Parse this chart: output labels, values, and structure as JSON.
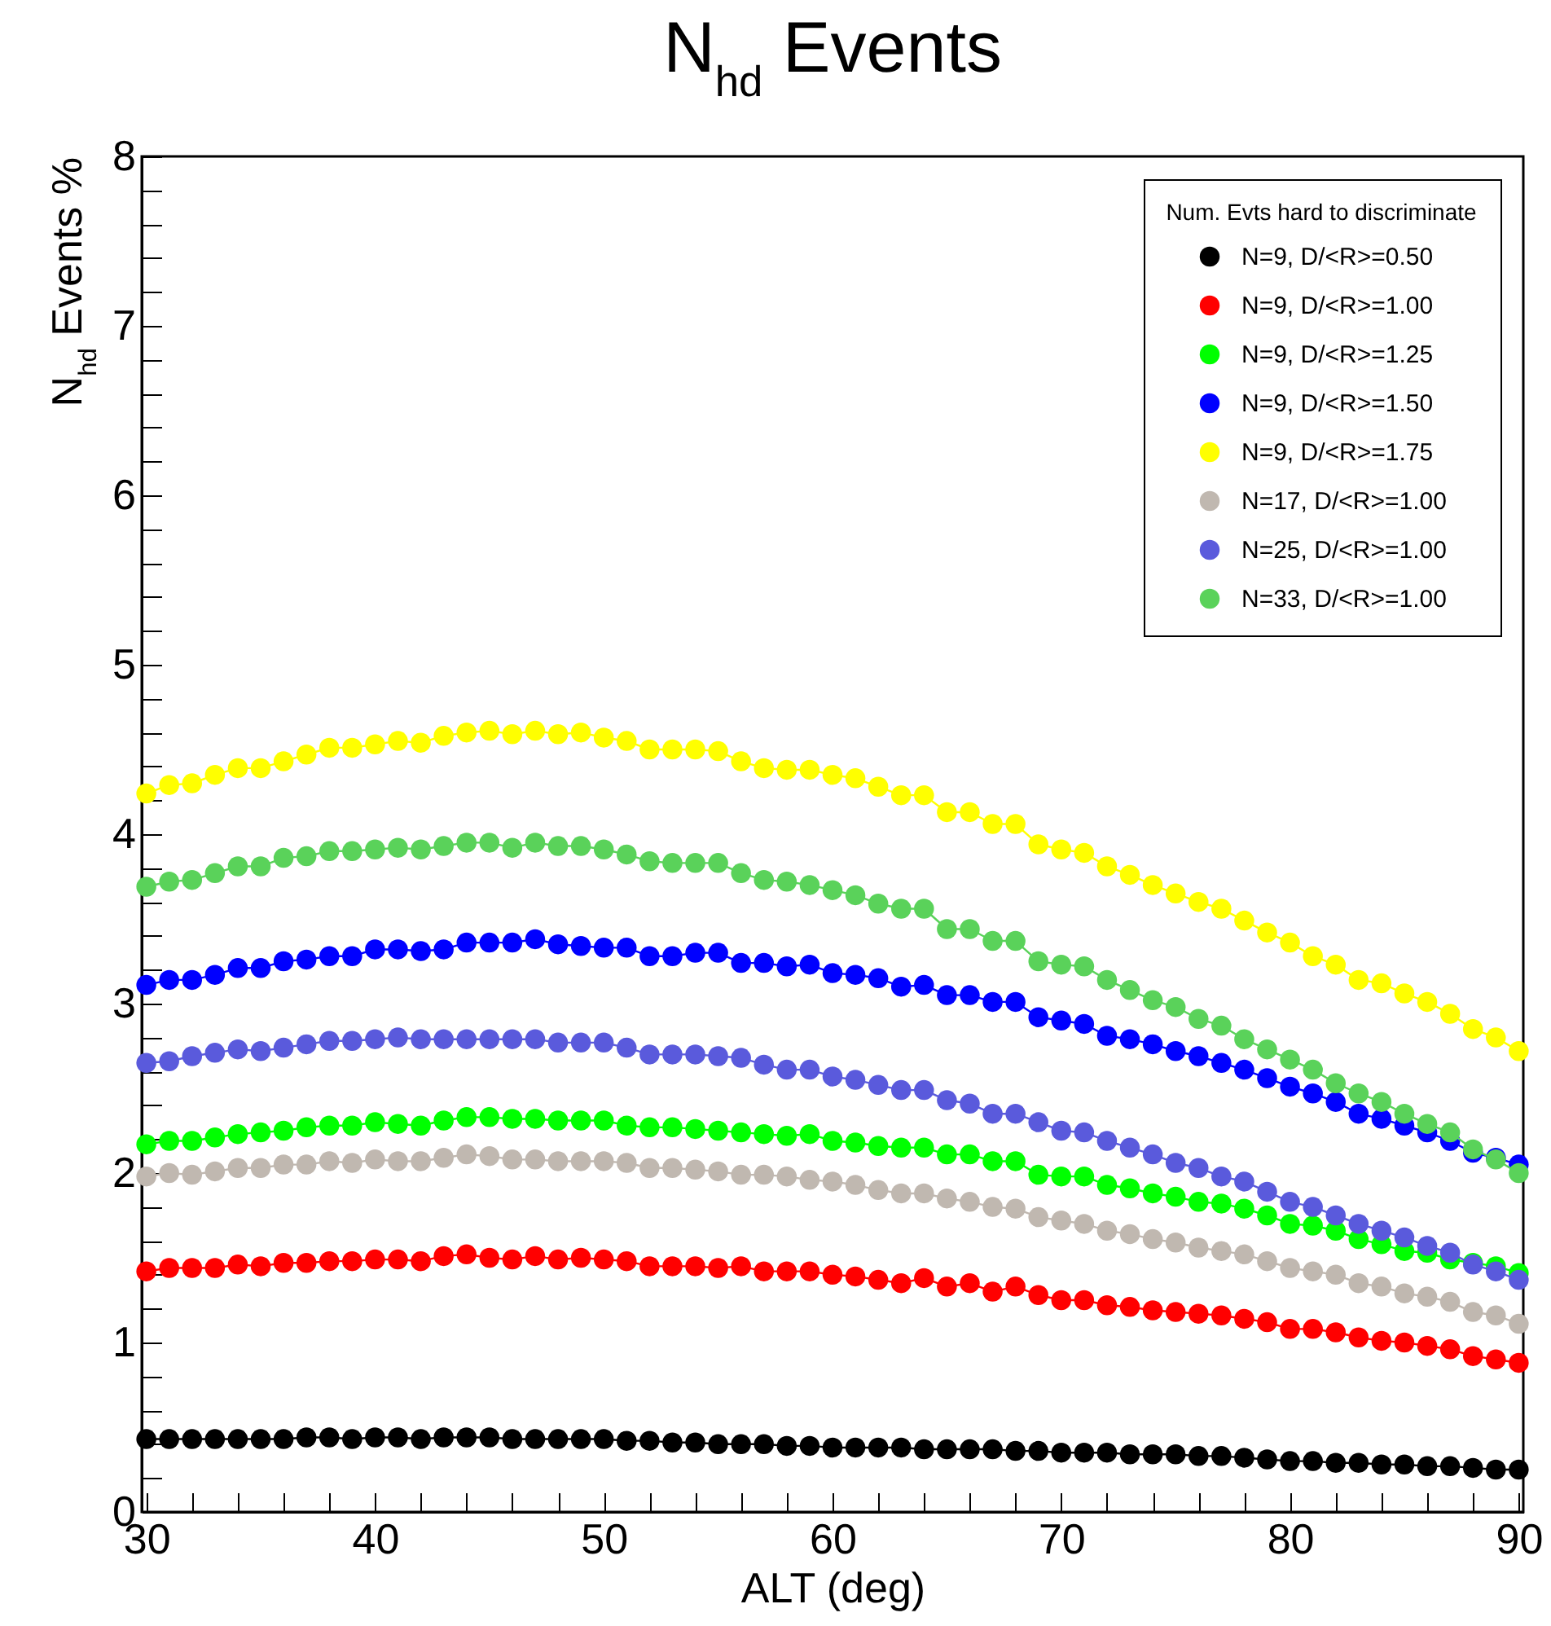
{
  "chart_data": {
    "type": "line",
    "title": "N$_{hd}$ Events",
    "xlabel": "ALT (deg)",
    "ylabel": "N$_{hd}$ Events %",
    "legend_title": "Num. Evts hard to discriminate",
    "legend": "top right",
    "marker": "circle",
    "line_style": "solid",
    "xlim": [
      29.8,
      90.2
    ],
    "ylim": [
      0,
      8
    ],
    "xticks": [
      30,
      {
        "value": 32,
        "label": null
      },
      {
        "value": 34,
        "label": null
      },
      {
        "value": 36,
        "label": null
      },
      {
        "value": 38,
        "label": null
      },
      40,
      {
        "value": 42,
        "label": null
      },
      {
        "value": 44,
        "label": null
      },
      {
        "value": 46,
        "label": null
      },
      {
        "value": 48,
        "label": null
      },
      50,
      {
        "value": 52,
        "label": null
      },
      {
        "value": 54,
        "label": null
      },
      {
        "value": 56,
        "label": null
      },
      {
        "value": 58,
        "label": null
      },
      60,
      {
        "value": 62,
        "label": null
      },
      {
        "value": 64,
        "label": null
      },
      {
        "value": 66,
        "label": null
      },
      {
        "value": 68,
        "label": null
      },
      70,
      {
        "value": 72,
        "label": null
      },
      {
        "value": 74,
        "label": null
      },
      {
        "value": 76,
        "label": null
      },
      {
        "value": 78,
        "label": null
      },
      80,
      {
        "value": 82,
        "label": null
      },
      {
        "value": 84,
        "label": null
      },
      {
        "value": 86,
        "label": null
      },
      {
        "value": 88,
        "label": null
      },
      90
    ],
    "yticks": [
      0,
      {
        "value": 0.2,
        "label": null
      },
      {
        "value": 0.4,
        "label": null
      },
      {
        "value": 0.6,
        "label": null
      },
      {
        "value": 0.8,
        "label": null
      },
      1,
      {
        "value": 1.2,
        "label": null
      },
      {
        "value": 1.4,
        "label": null
      },
      {
        "value": 1.6,
        "label": null
      },
      {
        "value": 1.8,
        "label": null
      },
      2,
      {
        "value": 2.2,
        "label": null
      },
      {
        "value": 2.4,
        "label": null
      },
      {
        "value": 2.6,
        "label": null
      },
      {
        "value": 2.8,
        "label": null
      },
      3,
      {
        "value": 3.2,
        "label": null
      },
      {
        "value": 3.4,
        "label": null
      },
      {
        "value": 3.6,
        "label": null
      },
      {
        "value": 3.8,
        "label": null
      },
      4,
      {
        "value": 4.2,
        "label": null
      },
      {
        "value": 4.4,
        "label": null
      },
      {
        "value": 4.6,
        "label": null
      },
      {
        "value": 4.8,
        "label": null
      },
      5,
      {
        "value": 5.2,
        "label": null
      },
      {
        "value": 5.4,
        "label": null
      },
      {
        "value": 5.6,
        "label": null
      },
      {
        "value": 5.8,
        "label": null
      },
      6,
      {
        "value": 6.2,
        "label": null
      },
      {
        "value": 6.4,
        "label": null
      },
      {
        "value": 6.6,
        "label": null
      },
      {
        "value": 6.8,
        "label": null
      },
      7,
      {
        "value": 7.2,
        "label": null
      },
      {
        "value": 7.4,
        "label": null
      },
      {
        "value": 7.6,
        "label": null
      },
      {
        "value": 7.8,
        "label": null
      },
      8
    ],
    "x": [
      30,
      31,
      32,
      33,
      34,
      35,
      36,
      37,
      38,
      39,
      40,
      41,
      42,
      43,
      44,
      45,
      46,
      47,
      48,
      49,
      50,
      51,
      52,
      53,
      54,
      55,
      56,
      57,
      58,
      59,
      60,
      61,
      62,
      63,
      64,
      65,
      66,
      67,
      68,
      69,
      70,
      71,
      72,
      73,
      74,
      75,
      76,
      77,
      78,
      79,
      80,
      81,
      82,
      83,
      84,
      85,
      86,
      87,
      88,
      89,
      90
    ],
    "series": [
      {
        "name": "N=9,  D/<R>=0.50",
        "color": "#000000",
        "values": [
          0.43,
          0.43,
          0.43,
          0.43,
          0.43,
          0.43,
          0.43,
          0.44,
          0.44,
          0.43,
          0.44,
          0.44,
          0.43,
          0.44,
          0.44,
          0.44,
          0.43,
          0.43,
          0.43,
          0.43,
          0.43,
          0.42,
          0.42,
          0.41,
          0.41,
          0.4,
          0.4,
          0.4,
          0.39,
          0.39,
          0.38,
          0.38,
          0.38,
          0.38,
          0.37,
          0.37,
          0.37,
          0.37,
          0.36,
          0.36,
          0.35,
          0.35,
          0.35,
          0.34,
          0.34,
          0.34,
          0.33,
          0.33,
          0.32,
          0.31,
          0.3,
          0.3,
          0.29,
          0.29,
          0.28,
          0.28,
          0.27,
          0.27,
          0.26,
          0.25,
          0.25
        ]
      },
      {
        "name": "N=9,  D/<R>=1.00",
        "color": "#ff0000",
        "values": [
          1.42,
          1.44,
          1.44,
          1.44,
          1.46,
          1.45,
          1.47,
          1.47,
          1.48,
          1.48,
          1.49,
          1.49,
          1.48,
          1.51,
          1.52,
          1.5,
          1.49,
          1.51,
          1.49,
          1.5,
          1.49,
          1.48,
          1.45,
          1.45,
          1.45,
          1.44,
          1.45,
          1.42,
          1.42,
          1.42,
          1.4,
          1.39,
          1.37,
          1.35,
          1.38,
          1.33,
          1.35,
          1.3,
          1.33,
          1.28,
          1.25,
          1.25,
          1.22,
          1.21,
          1.19,
          1.18,
          1.17,
          1.16,
          1.14,
          1.12,
          1.08,
          1.08,
          1.06,
          1.03,
          1.01,
          1.0,
          0.98,
          0.96,
          0.92,
          0.9,
          0.88
        ]
      },
      {
        "name": "N=9,  D/<R>=1.25",
        "color": "#00ff00",
        "values": [
          2.17,
          2.19,
          2.19,
          2.21,
          2.23,
          2.24,
          2.25,
          2.27,
          2.28,
          2.28,
          2.3,
          2.29,
          2.28,
          2.31,
          2.33,
          2.33,
          2.32,
          2.32,
          2.31,
          2.31,
          2.31,
          2.28,
          2.27,
          2.27,
          2.26,
          2.25,
          2.24,
          2.23,
          2.22,
          2.23,
          2.19,
          2.18,
          2.16,
          2.15,
          2.15,
          2.11,
          2.11,
          2.07,
          2.07,
          1.99,
          1.98,
          1.98,
          1.93,
          1.91,
          1.88,
          1.86,
          1.83,
          1.82,
          1.79,
          1.75,
          1.7,
          1.69,
          1.66,
          1.61,
          1.58,
          1.54,
          1.53,
          1.49,
          1.47,
          1.45,
          1.41
        ]
      },
      {
        "name": "N=9,  D/<R>=1.50",
        "color": "#0000ff",
        "values": [
          3.11,
          3.14,
          3.14,
          3.17,
          3.21,
          3.21,
          3.25,
          3.26,
          3.28,
          3.28,
          3.32,
          3.32,
          3.31,
          3.32,
          3.36,
          3.36,
          3.36,
          3.38,
          3.35,
          3.34,
          3.33,
          3.33,
          3.28,
          3.28,
          3.3,
          3.3,
          3.24,
          3.24,
          3.22,
          3.23,
          3.18,
          3.17,
          3.15,
          3.1,
          3.11,
          3.05,
          3.05,
          3.01,
          3.01,
          2.92,
          2.9,
          2.88,
          2.81,
          2.79,
          2.76,
          2.72,
          2.69,
          2.65,
          2.61,
          2.56,
          2.51,
          2.47,
          2.42,
          2.35,
          2.32,
          2.28,
          2.24,
          2.19,
          2.12,
          2.09,
          2.05
        ]
      },
      {
        "name": "N=9,  D/<R>=1.75",
        "color": "#ffff00",
        "values": [
          4.24,
          4.29,
          4.3,
          4.35,
          4.39,
          4.39,
          4.43,
          4.47,
          4.51,
          4.51,
          4.53,
          4.55,
          4.54,
          4.58,
          4.6,
          4.61,
          4.59,
          4.61,
          4.59,
          4.6,
          4.57,
          4.55,
          4.5,
          4.5,
          4.5,
          4.49,
          4.43,
          4.39,
          4.38,
          4.38,
          4.35,
          4.33,
          4.28,
          4.23,
          4.23,
          4.13,
          4.13,
          4.06,
          4.06,
          3.94,
          3.91,
          3.89,
          3.81,
          3.76,
          3.7,
          3.65,
          3.6,
          3.56,
          3.49,
          3.42,
          3.36,
          3.28,
          3.23,
          3.14,
          3.12,
          3.06,
          3.01,
          2.94,
          2.85,
          2.8,
          2.72
        ]
      },
      {
        "name": "N=17, D/<R>=1.00",
        "color": "#c0b8b0",
        "values": [
          1.98,
          2.0,
          1.99,
          2.01,
          2.03,
          2.03,
          2.05,
          2.05,
          2.07,
          2.06,
          2.08,
          2.07,
          2.07,
          2.09,
          2.11,
          2.1,
          2.08,
          2.08,
          2.07,
          2.07,
          2.07,
          2.06,
          2.03,
          2.03,
          2.02,
          2.01,
          1.99,
          1.99,
          1.98,
          1.96,
          1.95,
          1.93,
          1.9,
          1.88,
          1.88,
          1.85,
          1.83,
          1.8,
          1.79,
          1.74,
          1.72,
          1.7,
          1.66,
          1.64,
          1.61,
          1.59,
          1.56,
          1.54,
          1.52,
          1.48,
          1.44,
          1.42,
          1.4,
          1.35,
          1.33,
          1.29,
          1.27,
          1.24,
          1.18,
          1.16,
          1.11
        ]
      },
      {
        "name": "N=25, D/<R>=1.00",
        "color": "#5a5adc",
        "values": [
          2.65,
          2.66,
          2.69,
          2.71,
          2.73,
          2.72,
          2.74,
          2.76,
          2.78,
          2.78,
          2.79,
          2.8,
          2.79,
          2.79,
          2.79,
          2.79,
          2.79,
          2.79,
          2.77,
          2.77,
          2.77,
          2.74,
          2.7,
          2.7,
          2.7,
          2.69,
          2.68,
          2.64,
          2.61,
          2.61,
          2.57,
          2.55,
          2.52,
          2.49,
          2.49,
          2.43,
          2.41,
          2.35,
          2.35,
          2.3,
          2.25,
          2.24,
          2.19,
          2.15,
          2.11,
          2.06,
          2.03,
          1.98,
          1.95,
          1.89,
          1.83,
          1.8,
          1.75,
          1.7,
          1.66,
          1.62,
          1.57,
          1.53,
          1.46,
          1.42,
          1.37
        ]
      },
      {
        "name": "N=33, D/<R>=1.00",
        "color": "#5ad25a",
        "values": [
          3.69,
          3.72,
          3.73,
          3.77,
          3.81,
          3.81,
          3.86,
          3.87,
          3.9,
          3.9,
          3.91,
          3.92,
          3.91,
          3.93,
          3.95,
          3.95,
          3.92,
          3.95,
          3.93,
          3.93,
          3.91,
          3.88,
          3.84,
          3.83,
          3.83,
          3.83,
          3.77,
          3.73,
          3.72,
          3.7,
          3.67,
          3.64,
          3.59,
          3.56,
          3.56,
          3.44,
          3.44,
          3.37,
          3.37,
          3.25,
          3.23,
          3.22,
          3.14,
          3.08,
          3.02,
          2.98,
          2.91,
          2.87,
          2.79,
          2.73,
          2.67,
          2.61,
          2.53,
          2.47,
          2.42,
          2.35,
          2.29,
          2.24,
          2.14,
          2.08,
          2.0
        ]
      }
    ]
  }
}
